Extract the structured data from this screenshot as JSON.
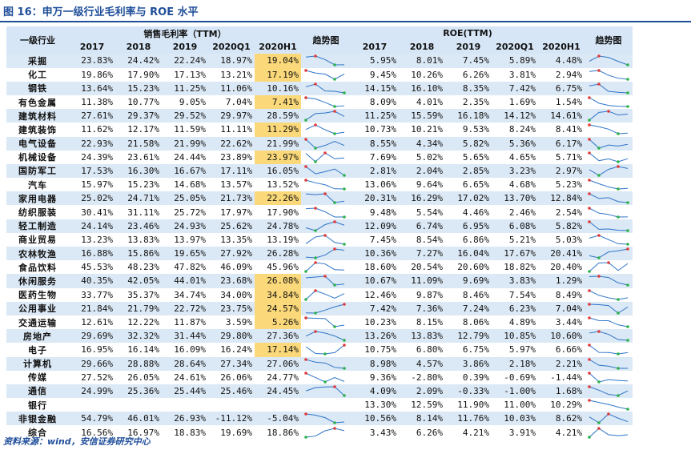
{
  "title": "图 16：申万一级行业毛利率与 ROE 水平",
  "source": "资料来源：wind，安信证券研究中心",
  "header": {
    "industry": "一级行业",
    "gross_margin_group": "销售毛利率（TTM）",
    "roe_group": "ROE(TTM)",
    "trend": "趋势图",
    "periods": [
      "2017",
      "2018",
      "2019",
      "2020Q1",
      "2020H1"
    ]
  },
  "colors": {
    "highlight": "#fbd97a",
    "band": "#dbe8f5",
    "header": "#d6e6f7",
    "title": "#1f4e9a",
    "line": "#2e75c9",
    "max_marker": "#e03a3a",
    "min_marker": "#2bb24a"
  },
  "rows": [
    {
      "name": "采掘",
      "gm": [
        "23.83%",
        "24.42%",
        "22.24%",
        "18.97%",
        "19.04%"
      ],
      "roe": [
        "5.95%",
        "8.01%",
        "7.45%",
        "5.89%",
        "4.48%"
      ],
      "hl": true
    },
    {
      "name": "化工",
      "gm": [
        "19.86%",
        "17.90%",
        "17.13%",
        "13.21%",
        "17.19%"
      ],
      "roe": [
        "9.45%",
        "10.26%",
        "6.26%",
        "3.81%",
        "2.94%"
      ],
      "hl": true
    },
    {
      "name": "钢铁",
      "gm": [
        "13.64%",
        "15.23%",
        "11.25%",
        "11.06%",
        "10.16%"
      ],
      "roe": [
        "14.15%",
        "16.10%",
        "8.35%",
        "7.42%",
        "6.75%"
      ],
      "hl": false
    },
    {
      "name": "有色金属",
      "gm": [
        "11.38%",
        "10.77%",
        "9.05%",
        "7.04%",
        "7.41%"
      ],
      "roe": [
        "8.09%",
        "4.01%",
        "2.35%",
        "1.69%",
        "1.54%"
      ],
      "hl": true
    },
    {
      "name": "建筑材料",
      "gm": [
        "27.61%",
        "29.37%",
        "29.52%",
        "29.97%",
        "28.59%"
      ],
      "roe": [
        "11.25%",
        "15.59%",
        "16.18%",
        "14.12%",
        "14.61%"
      ],
      "hl": false
    },
    {
      "name": "建筑装饰",
      "gm": [
        "11.62%",
        "12.17%",
        "11.59%",
        "11.11%",
        "11.29%"
      ],
      "roe": [
        "10.73%",
        "10.21%",
        "9.53%",
        "8.24%",
        "8.41%"
      ],
      "hl": true
    },
    {
      "name": "电气设备",
      "gm": [
        "22.93%",
        "21.58%",
        "21.99%",
        "22.62%",
        "21.99%"
      ],
      "roe": [
        "8.55%",
        "4.34%",
        "5.82%",
        "5.36%",
        "6.17%"
      ],
      "hl": false
    },
    {
      "name": "机械设备",
      "gm": [
        "24.39%",
        "23.61%",
        "24.44%",
        "23.89%",
        "23.97%"
      ],
      "roe": [
        "7.69%",
        "5.02%",
        "5.65%",
        "4.65%",
        "5.71%"
      ],
      "hl": true
    },
    {
      "name": "国防军工",
      "gm": [
        "17.53%",
        "16.30%",
        "16.67%",
        "17.11%",
        "16.05%"
      ],
      "roe": [
        "2.81%",
        "2.04%",
        "2.85%",
        "3.23%",
        "2.97%"
      ],
      "hl": false
    },
    {
      "name": "汽车",
      "gm": [
        "15.97%",
        "15.23%",
        "14.68%",
        "13.57%",
        "13.52%"
      ],
      "roe": [
        "13.06%",
        "9.64%",
        "6.65%",
        "4.68%",
        "5.23%"
      ],
      "hl": false
    },
    {
      "name": "家用电器",
      "gm": [
        "25.02%",
        "24.71%",
        "25.05%",
        "21.73%",
        "22.26%"
      ],
      "roe": [
        "20.31%",
        "16.29%",
        "17.02%",
        "13.70%",
        "12.84%"
      ],
      "hl": true
    },
    {
      "name": "纺织服装",
      "gm": [
        "30.41%",
        "31.11%",
        "25.72%",
        "17.97%",
        "17.90%"
      ],
      "roe": [
        "9.48%",
        "5.54%",
        "4.46%",
        "2.46%",
        "2.54%"
      ],
      "hl": false
    },
    {
      "name": "轻工制造",
      "gm": [
        "24.14%",
        "23.46%",
        "24.93%",
        "25.62%",
        "24.78%"
      ],
      "roe": [
        "12.09%",
        "6.74%",
        "6.95%",
        "6.08%",
        "5.82%"
      ],
      "hl": false
    },
    {
      "name": "商业贸易",
      "gm": [
        "13.23%",
        "13.83%",
        "13.97%",
        "13.35%",
        "13.19%"
      ],
      "roe": [
        "7.45%",
        "8.54%",
        "6.86%",
        "5.21%",
        "5.03%"
      ],
      "hl": false
    },
    {
      "name": "农林牧渔",
      "gm": [
        "16.88%",
        "15.86%",
        "19.65%",
        "27.92%",
        "26.28%"
      ],
      "roe": [
        "10.36%",
        "7.27%",
        "16.04%",
        "17.67%",
        "20.41%"
      ],
      "hl": false
    },
    {
      "name": "食品饮料",
      "gm": [
        "45.53%",
        "48.23%",
        "47.82%",
        "46.09%",
        "45.96%"
      ],
      "roe": [
        "18.60%",
        "20.54%",
        "20.60%",
        "18.82%",
        "20.40%"
      ],
      "hl": false
    },
    {
      "name": "休闲服务",
      "gm": [
        "40.35%",
        "42.05%",
        "44.01%",
        "23.68%",
        "26.08%"
      ],
      "roe": [
        "10.67%",
        "11.09%",
        "9.69%",
        "3.83%",
        "1.29%"
      ],
      "hl": true
    },
    {
      "name": "医药生物",
      "gm": [
        "33.77%",
        "35.37%",
        "34.74%",
        "34.00%",
        "34.84%"
      ],
      "roe": [
        "12.46%",
        "9.87%",
        "8.46%",
        "7.54%",
        "8.49%"
      ],
      "hl": true
    },
    {
      "name": "公用事业",
      "gm": [
        "21.84%",
        "21.79%",
        "22.72%",
        "23.75%",
        "24.57%"
      ],
      "roe": [
        "7.42%",
        "7.36%",
        "7.24%",
        "6.23%",
        "7.04%"
      ],
      "hl": true
    },
    {
      "name": "交通运输",
      "gm": [
        "12.61%",
        "12.22%",
        "11.87%",
        "3.59%",
        "5.26%"
      ],
      "roe": [
        "10.23%",
        "8.15%",
        "8.06%",
        "4.89%",
        "3.44%"
      ],
      "hl": true
    },
    {
      "name": "房地产",
      "gm": [
        "29.69%",
        "32.32%",
        "31.44%",
        "29.80%",
        "27.36%"
      ],
      "roe": [
        "13.26%",
        "13.83%",
        "12.79%",
        "10.85%",
        "10.60%"
      ],
      "hl": false
    },
    {
      "name": "电子",
      "gm": [
        "16.95%",
        "16.14%",
        "16.09%",
        "16.24%",
        "17.14%"
      ],
      "roe": [
        "10.75%",
        "6.80%",
        "6.75%",
        "5.97%",
        "6.66%"
      ],
      "hl": true
    },
    {
      "name": "计算机",
      "gm": [
        "29.66%",
        "28.88%",
        "28.64%",
        "27.34%",
        "27.06%"
      ],
      "roe": [
        "8.98%",
        "4.57%",
        "3.86%",
        "2.18%",
        "2.21%"
      ],
      "hl": false
    },
    {
      "name": "传媒",
      "gm": [
        "27.52%",
        "26.05%",
        "24.61%",
        "26.06%",
        "24.77%"
      ],
      "roe": [
        "9.36%",
        "-2.80%",
        "0.39%",
        "-0.69%",
        "-1.44%"
      ],
      "hl": false
    },
    {
      "name": "通信",
      "gm": [
        "24.99%",
        "25.36%",
        "25.44%",
        "25.46%",
        "24.45%"
      ],
      "roe": [
        "4.09%",
        "2.09%",
        "-0.33%",
        "-1.00%",
        "1.68%"
      ],
      "hl": false
    },
    {
      "name": "银行",
      "gm": [
        "",
        "",
        "",
        "",
        ""
      ],
      "roe": [
        "13.30%",
        "12.59%",
        "11.90%",
        "11.00%",
        "10.29%"
      ],
      "hl": false
    },
    {
      "name": "非银金融",
      "gm": [
        "54.79%",
        "46.01%",
        "26.93%",
        "-11.12%",
        "-5.04%"
      ],
      "roe": [
        "10.56%",
        "8.14%",
        "11.76%",
        "10.03%",
        "8.62%"
      ],
      "hl": false
    },
    {
      "name": "综合",
      "gm": [
        "16.56%",
        "16.97%",
        "18.83%",
        "19.69%",
        "18.86%"
      ],
      "roe": [
        "3.43%",
        "6.26%",
        "4.21%",
        "3.91%",
        "4.21%"
      ],
      "hl": false
    }
  ]
}
